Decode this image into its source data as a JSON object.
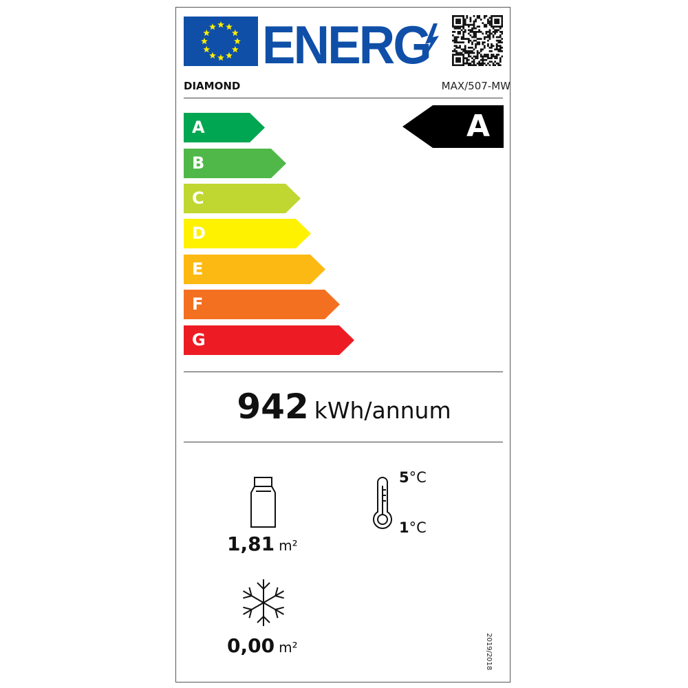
{
  "header": {
    "logo_text": "ENERG",
    "brand": "DIAMOND",
    "model": "MAX/507-MW",
    "colors": {
      "eu_blue": "#0f4fa8",
      "eu_star": "#ffed00"
    },
    "icons": [
      "eu-flag-icon",
      "lightning-icon",
      "qr-code-icon"
    ]
  },
  "scale": [
    {
      "label": "A",
      "color": "#00a651"
    },
    {
      "label": "B",
      "color": "#50b848"
    },
    {
      "label": "C",
      "color": "#bfd730"
    },
    {
      "label": "D",
      "color": "#fff200"
    },
    {
      "label": "E",
      "color": "#fdb913"
    },
    {
      "label": "F",
      "color": "#f37021"
    },
    {
      "label": "G",
      "color": "#ed1c24"
    }
  ],
  "rating": {
    "class": "A"
  },
  "consumption": {
    "value": "942",
    "unit": "kWh/annum"
  },
  "display_area": {
    "icon": "chiller-cabinet-icon",
    "value": "1,81",
    "unit": "m²"
  },
  "frozen_area": {
    "icon": "snowflake-icon",
    "value": "0,00",
    "unit": "m²"
  },
  "temperature": {
    "icon": "thermometer-icon",
    "max": "5",
    "min": "1",
    "unit": "°C"
  },
  "regulation": "2019/2018"
}
